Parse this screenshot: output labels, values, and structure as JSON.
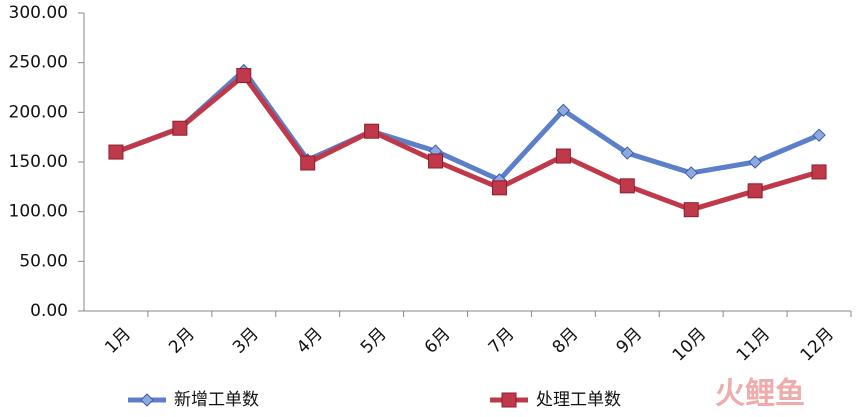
{
  "chart_data": {
    "type": "line",
    "categories": [
      "1月",
      "2月",
      "3月",
      "4月",
      "5月",
      "6月",
      "7月",
      "8月",
      "9月",
      "10月",
      "11月",
      "12月"
    ],
    "series": [
      {
        "name": "新增工单数",
        "color": "#5b7fc9",
        "marker": "diamond",
        "values": [
          160,
          184,
          242,
          152,
          181,
          161,
          132,
          202,
          159,
          139,
          150,
          177
        ]
      },
      {
        "name": "处理工单数",
        "color": "#c0394a",
        "marker": "square",
        "values": [
          160,
          184,
          237,
          149,
          181,
          151,
          124,
          156,
          126,
          102,
          121,
          140
        ]
      }
    ],
    "ylim": [
      0,
      300
    ],
    "yticks": [
      {
        "value": 0,
        "label": "0.00"
      },
      {
        "value": 50,
        "label": "50.00"
      },
      {
        "value": 100,
        "label": "100.00"
      },
      {
        "value": 150,
        "label": "150.00"
      },
      {
        "value": 200,
        "label": "200.00"
      },
      {
        "value": 250,
        "label": "250.00"
      },
      {
        "value": 300,
        "label": "300.00"
      }
    ],
    "grid": false,
    "legend": "bottom",
    "watermark": "火鲤鱼"
  }
}
